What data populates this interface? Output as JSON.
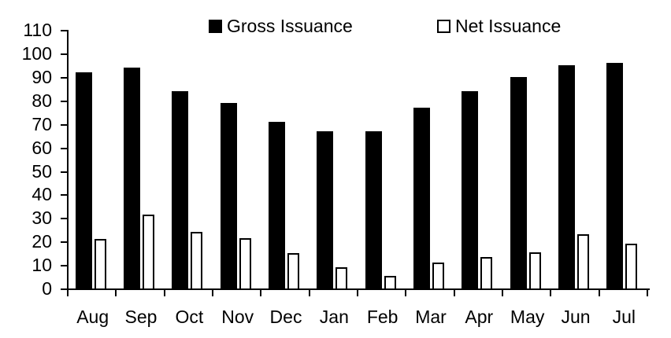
{
  "chart_data": {
    "type": "bar",
    "title": "",
    "xlabel": "",
    "ylabel": "",
    "categories": [
      "Aug",
      "Sep",
      "Oct",
      "Nov",
      "Dec",
      "Jan",
      "Feb",
      "Mar",
      "Apr",
      "May",
      "Jun",
      "Jul"
    ],
    "series": [
      {
        "name": "Gross Issuance",
        "fill": "#000000",
        "outline": "#000000",
        "values": [
          92,
          94,
          84,
          79,
          71,
          67,
          67,
          77,
          84,
          90,
          95,
          96
        ]
      },
      {
        "name": "Net Issuance",
        "fill": "#ffffff",
        "outline": "#000000",
        "values": [
          21,
          31.5,
          24,
          21.5,
          15,
          9,
          5.5,
          11,
          13.5,
          15.5,
          23,
          19
        ]
      }
    ],
    "ylim": [
      0,
      110
    ],
    "ytick_step": 10,
    "grid": false,
    "legend_position": "top",
    "axis_color": "#000000",
    "background_color": "#ffffff"
  }
}
